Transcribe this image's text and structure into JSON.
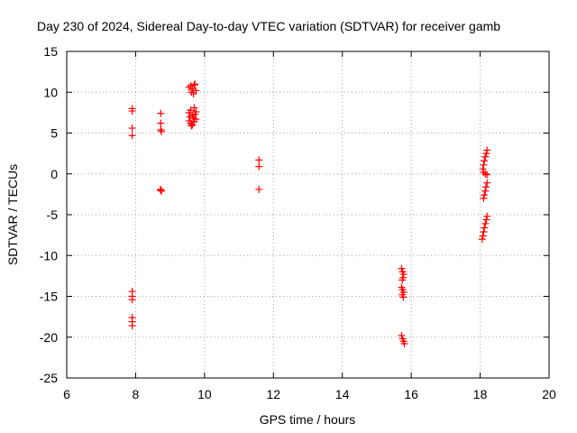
{
  "chart_data": {
    "type": "scatter",
    "title": "Day 230 of 2024, Sidereal Day-to-day VTEC variation (SDTVAR) for receiver gamb",
    "xlabel": "GPS time / hours",
    "ylabel": "SDTVAR / TECUs",
    "xlim": [
      6,
      20
    ],
    "ylim": [
      -25,
      15
    ],
    "xticks": [
      6,
      8,
      10,
      12,
      14,
      16,
      18,
      20
    ],
    "yticks": [
      -25,
      -20,
      -15,
      -10,
      -5,
      0,
      5,
      10,
      15
    ],
    "grid": true,
    "marker": "plus",
    "series_color": "#ff0000",
    "series": [
      {
        "name": "SDTVAR",
        "points": [
          [
            7.9,
            8.0
          ],
          [
            7.9,
            7.7
          ],
          [
            7.9,
            5.6
          ],
          [
            7.9,
            4.7
          ],
          [
            7.9,
            -14.4
          ],
          [
            7.9,
            -15.0
          ],
          [
            7.9,
            -15.4
          ],
          [
            7.9,
            -17.6
          ],
          [
            7.9,
            -18.1
          ],
          [
            7.9,
            -18.6
          ],
          [
            8.73,
            7.4
          ],
          [
            8.73,
            6.2
          ],
          [
            8.73,
            5.4
          ],
          [
            8.75,
            5.2
          ],
          [
            8.72,
            -1.9
          ],
          [
            8.73,
            -2.0
          ],
          [
            8.75,
            -2.1
          ],
          [
            9.55,
            10.6
          ],
          [
            9.6,
            10.8
          ],
          [
            9.65,
            10.4
          ],
          [
            9.7,
            10.9
          ],
          [
            9.75,
            10.2
          ],
          [
            9.62,
            10.0
          ],
          [
            9.68,
            9.8
          ],
          [
            9.72,
            11.0
          ],
          [
            9.55,
            7.5
          ],
          [
            9.6,
            7.8
          ],
          [
            9.65,
            7.2
          ],
          [
            9.7,
            8.1
          ],
          [
            9.75,
            7.6
          ],
          [
            9.58,
            7.0
          ],
          [
            9.68,
            6.8
          ],
          [
            9.72,
            7.3
          ],
          [
            9.55,
            6.5
          ],
          [
            9.6,
            6.2
          ],
          [
            9.65,
            6.0
          ],
          [
            9.7,
            6.4
          ],
          [
            9.75,
            6.7
          ],
          [
            9.62,
            5.9
          ],
          [
            11.58,
            1.7
          ],
          [
            11.58,
            0.9
          ],
          [
            11.58,
            -1.9
          ],
          [
            15.72,
            -11.6
          ],
          [
            15.75,
            -12.0
          ],
          [
            15.78,
            -12.3
          ],
          [
            15.76,
            -12.7
          ],
          [
            15.74,
            -13.0
          ],
          [
            15.72,
            -13.9
          ],
          [
            15.75,
            -14.2
          ],
          [
            15.78,
            -14.5
          ],
          [
            15.74,
            -14.8
          ],
          [
            15.77,
            -15.1
          ],
          [
            15.72,
            -19.8
          ],
          [
            15.75,
            -20.2
          ],
          [
            15.78,
            -20.5
          ],
          [
            15.8,
            -20.8
          ],
          [
            18.2,
            2.9
          ],
          [
            18.18,
            2.5
          ],
          [
            18.15,
            2.1
          ],
          [
            18.12,
            1.6
          ],
          [
            18.1,
            1.1
          ],
          [
            18.08,
            0.6
          ],
          [
            18.1,
            0.2
          ],
          [
            18.15,
            0.0
          ],
          [
            18.2,
            -0.1
          ],
          [
            18.2,
            -1.1
          ],
          [
            18.17,
            -1.6
          ],
          [
            18.15,
            -2.1
          ],
          [
            18.12,
            -2.6
          ],
          [
            18.1,
            -3.0
          ],
          [
            18.2,
            -5.2
          ],
          [
            18.18,
            -5.6
          ],
          [
            18.15,
            -6.1
          ],
          [
            18.12,
            -6.6
          ],
          [
            18.1,
            -7.1
          ],
          [
            18.08,
            -7.6
          ],
          [
            18.06,
            -8.0
          ]
        ]
      }
    ]
  }
}
